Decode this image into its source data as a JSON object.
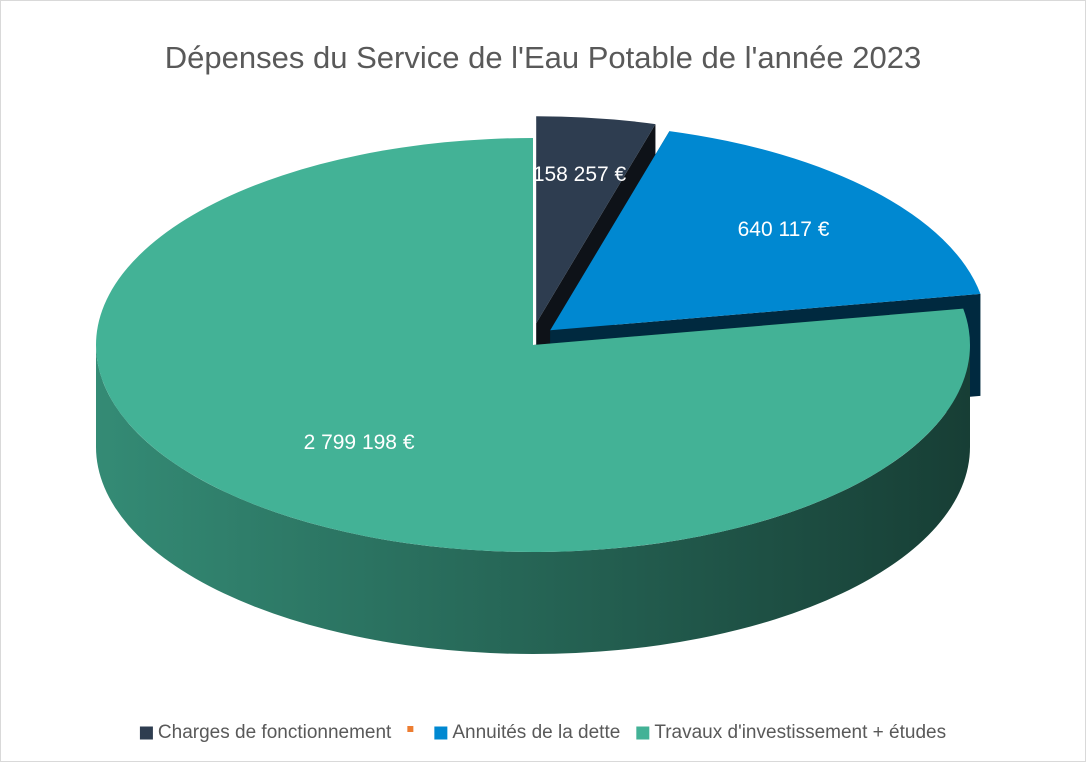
{
  "chart_data": {
    "type": "pie3d",
    "title": "Dépenses du Service de l'Eau Potable de l'année 2023",
    "categories": [
      "Charges de fonctionnement",
      null,
      "Annuités de la dette",
      "Travaux d'investissement + études"
    ],
    "values": [
      158257,
      0,
      640117,
      2799198
    ],
    "value_labels": [
      "158 257 €",
      null,
      "640 117 €",
      "2 799 198 €"
    ],
    "colors": [
      "#2e3d50",
      "#ed7d31",
      "#0088d1",
      "#43b296"
    ],
    "legend": "bottom"
  }
}
